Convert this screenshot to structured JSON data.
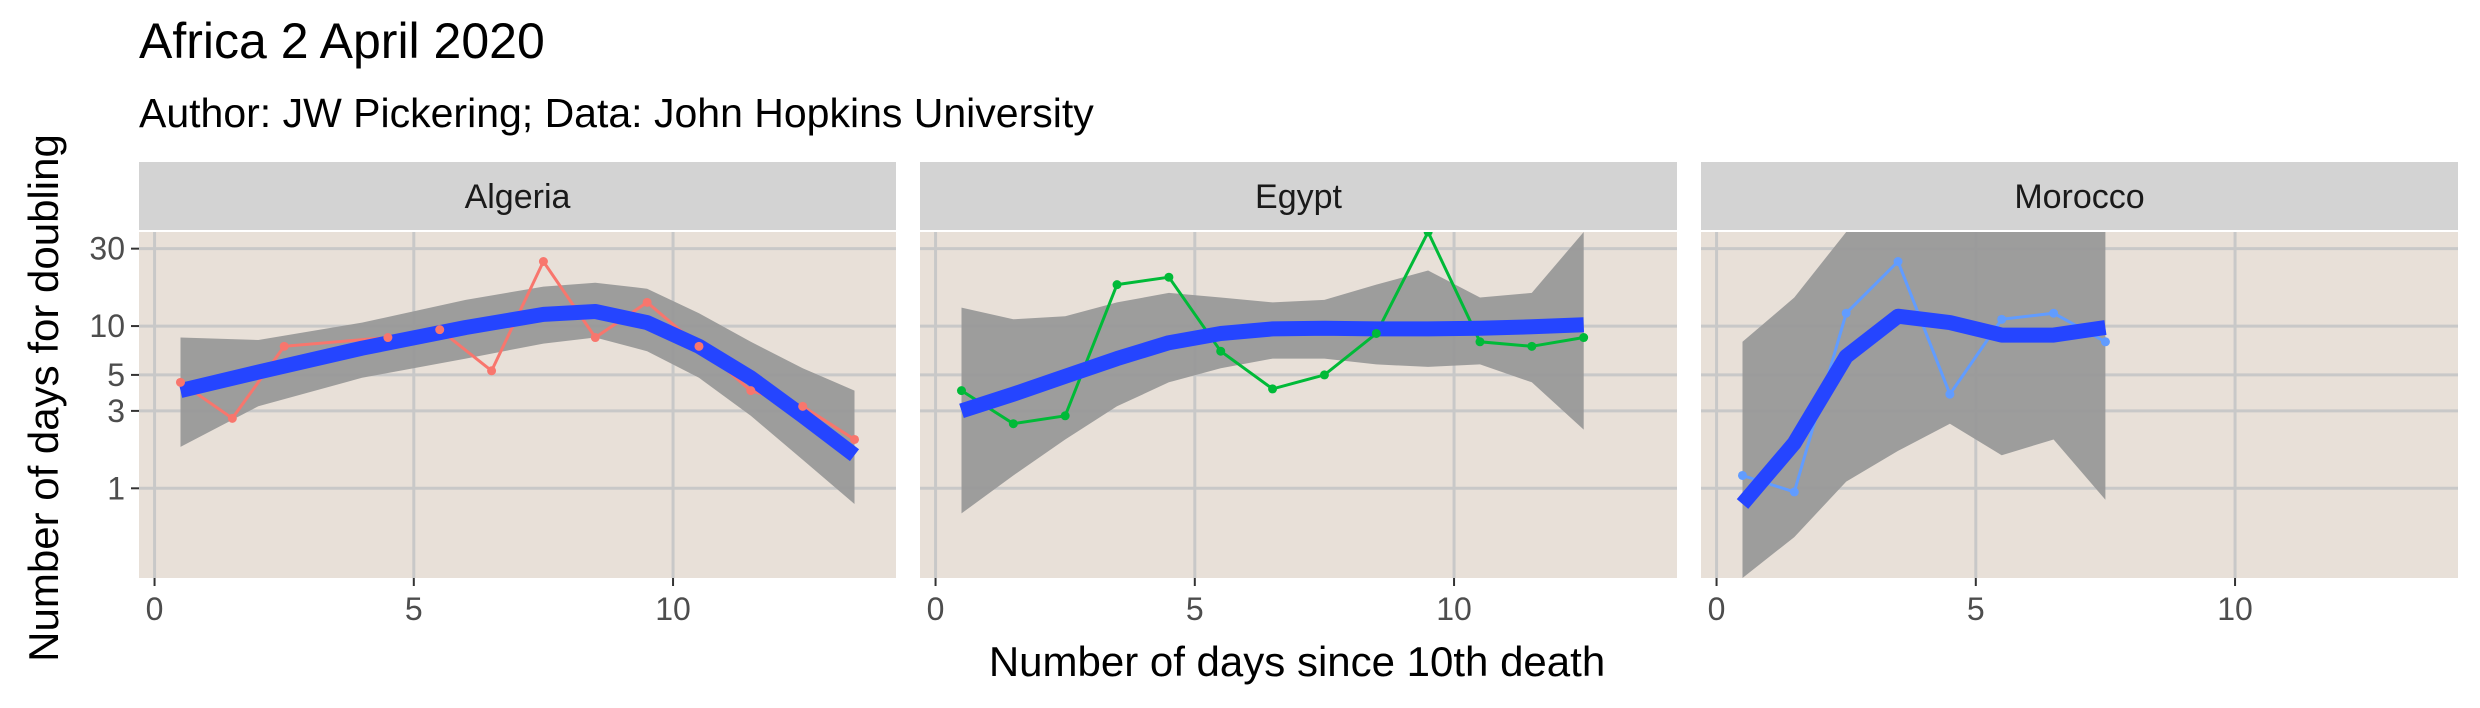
{
  "chart_data": {
    "type": "line",
    "title": "Africa 2 April 2020",
    "subtitle": "Author: JW Pickering; Data: John Hopkins University",
    "xlabel": "Number of days since 10th death",
    "ylabel": "Number of days for doubling",
    "xlim": [
      -0.3,
      14.3
    ],
    "ylim": [
      0.28,
      38
    ],
    "yscale": "log",
    "x_ticks": [
      0,
      5,
      10
    ],
    "y_ticks": [
      1,
      3,
      5,
      10,
      30
    ],
    "grid": true,
    "panel_background": "#e8e0d8",
    "strip_background": "#d3d3d3",
    "grid_color": "#c8c8c8",
    "smooth_color": "#2545ff",
    "ribbon_color": "#999999",
    "panels": [
      {
        "name": "Algeria",
        "color": "#f8766d",
        "points": [
          [
            0.5,
            4.5
          ],
          [
            1.5,
            2.7
          ],
          [
            2.5,
            7.5
          ],
          [
            4.5,
            8.5
          ],
          [
            5.5,
            9.5
          ],
          [
            6.5,
            5.3
          ],
          [
            7.5,
            25
          ],
          [
            8.5,
            8.5
          ],
          [
            9.5,
            14
          ],
          [
            10.5,
            7.5
          ],
          [
            11.5,
            4
          ],
          [
            12.5,
            3.2
          ],
          [
            13.5,
            2.0
          ]
        ],
        "smooth": [
          [
            0.5,
            4.0
          ],
          [
            2,
            5.2
          ],
          [
            4,
            7.3
          ],
          [
            6,
            9.8
          ],
          [
            7.5,
            11.8
          ],
          [
            8.5,
            12.3
          ],
          [
            9.5,
            10.5
          ],
          [
            10.5,
            7.5
          ],
          [
            11.5,
            4.8
          ],
          [
            12.5,
            2.8
          ],
          [
            13.5,
            1.6
          ]
        ],
        "ribbon_upper": [
          [
            0.5,
            8.5
          ],
          [
            2,
            8.2
          ],
          [
            4,
            10.5
          ],
          [
            6,
            14.5
          ],
          [
            7.5,
            17.5
          ],
          [
            8.5,
            18.5
          ],
          [
            9.5,
            17
          ],
          [
            10.5,
            12
          ],
          [
            11.5,
            8
          ],
          [
            12.5,
            5.5
          ],
          [
            13.5,
            4.0
          ]
        ],
        "ribbon_lower": [
          [
            0.5,
            1.8
          ],
          [
            2,
            3.2
          ],
          [
            4,
            4.8
          ],
          [
            6,
            6.3
          ],
          [
            7.5,
            7.8
          ],
          [
            8.5,
            8.5
          ],
          [
            9.5,
            7
          ],
          [
            10.5,
            4.8
          ],
          [
            11.5,
            2.8
          ],
          [
            12.5,
            1.5
          ],
          [
            13.5,
            0.8
          ]
        ]
      },
      {
        "name": "Egypt",
        "color": "#00ba38",
        "points": [
          [
            0.5,
            4.0
          ],
          [
            1.5,
            2.5
          ],
          [
            2.5,
            2.8
          ],
          [
            3.5,
            18
          ],
          [
            4.5,
            20
          ],
          [
            5.5,
            7
          ],
          [
            6.5,
            4.1
          ],
          [
            7.5,
            5
          ],
          [
            8.5,
            9
          ],
          [
            9.5,
            38
          ],
          [
            10.5,
            8
          ],
          [
            11.5,
            7.5
          ],
          [
            12.5,
            8.5
          ]
        ],
        "smooth": [
          [
            0.5,
            3.0
          ],
          [
            1.5,
            3.8
          ],
          [
            2.5,
            4.9
          ],
          [
            3.5,
            6.3
          ],
          [
            4.5,
            7.9
          ],
          [
            5.5,
            9.0
          ],
          [
            6.5,
            9.6
          ],
          [
            7.5,
            9.7
          ],
          [
            8.5,
            9.6
          ],
          [
            9.5,
            9.6
          ],
          [
            10.5,
            9.7
          ],
          [
            11.5,
            9.9
          ],
          [
            12.5,
            10.2
          ]
        ],
        "ribbon_upper": [
          [
            0.5,
            13
          ],
          [
            1.5,
            11
          ],
          [
            2.5,
            11.5
          ],
          [
            3.5,
            14
          ],
          [
            4.5,
            16
          ],
          [
            5.5,
            15
          ],
          [
            6.5,
            14
          ],
          [
            7.5,
            14.5
          ],
          [
            8.5,
            18
          ],
          [
            9.5,
            22
          ],
          [
            10.5,
            15
          ],
          [
            11.5,
            16
          ],
          [
            12.5,
            38
          ]
        ],
        "ribbon_lower": [
          [
            0.5,
            0.7
          ],
          [
            1.5,
            1.2
          ],
          [
            2.5,
            2.0
          ],
          [
            3.5,
            3.2
          ],
          [
            4.5,
            4.5
          ],
          [
            5.5,
            5.5
          ],
          [
            6.5,
            6.3
          ],
          [
            7.5,
            6.3
          ],
          [
            8.5,
            5.8
          ],
          [
            9.5,
            5.6
          ],
          [
            10.5,
            5.8
          ],
          [
            11.5,
            4.5
          ],
          [
            12.5,
            2.3
          ]
        ]
      },
      {
        "name": "Morocco",
        "color": "#619cff",
        "points": [
          [
            0.5,
            1.2
          ],
          [
            1.5,
            0.95
          ],
          [
            2.5,
            12
          ],
          [
            3.5,
            25
          ],
          [
            4.5,
            3.8
          ],
          [
            5.5,
            11
          ],
          [
            6.5,
            12
          ],
          [
            7.5,
            8
          ]
        ],
        "smooth": [
          [
            0.5,
            0.8
          ],
          [
            1.5,
            1.9
          ],
          [
            2.5,
            6.5
          ],
          [
            3.5,
            11.5
          ],
          [
            4.5,
            10.5
          ],
          [
            5.5,
            8.8
          ],
          [
            6.5,
            8.8
          ],
          [
            7.5,
            9.8
          ]
        ],
        "ribbon_upper": [
          [
            0.5,
            8
          ],
          [
            1.5,
            15
          ],
          [
            2.5,
            38
          ],
          [
            3.5,
            38
          ],
          [
            4.5,
            38
          ],
          [
            5.5,
            38
          ],
          [
            6.5,
            38
          ],
          [
            7.5,
            38
          ]
        ],
        "ribbon_lower": [
          [
            0.5,
            0.28
          ],
          [
            1.5,
            0.5
          ],
          [
            2.5,
            1.1
          ],
          [
            3.5,
            1.7
          ],
          [
            4.5,
            2.5
          ],
          [
            5.5,
            1.6
          ],
          [
            6.5,
            2.0
          ],
          [
            7.5,
            0.85
          ]
        ]
      }
    ]
  }
}
